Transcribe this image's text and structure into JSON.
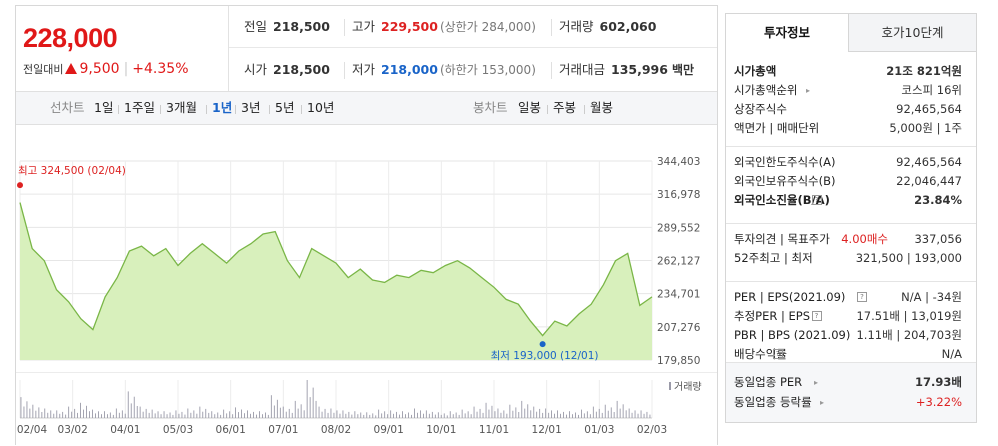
{
  "quote": {
    "price": "228,000",
    "change_label": "전일대비",
    "change_value": "9,500",
    "change_pct": "+4.35%",
    "row1": [
      {
        "key": "전일",
        "value": "218,500",
        "sub": "",
        "color": "normal"
      },
      {
        "key": "고가",
        "value": "229,500",
        "sub": "(상한가 284,000)",
        "color": "up"
      },
      {
        "key": "거래량",
        "value": "602,060",
        "sub": "",
        "color": "normal"
      }
    ],
    "row2": [
      {
        "key": "시가",
        "value": "218,500",
        "sub": "",
        "color": "normal"
      },
      {
        "key": "저가",
        "value": "218,000",
        "sub": "(하한가 153,000)",
        "color": "down"
      },
      {
        "key": "거래대금",
        "value": "135,996",
        "sub": "백만",
        "color": "normal"
      }
    ]
  },
  "periods": {
    "label": "선차트",
    "items": [
      "1일",
      "1주일",
      "3개월",
      "1년",
      "3년",
      "5년",
      "10년"
    ],
    "selected": "1년",
    "candle_label": "봉차트",
    "candle_items": [
      "일봉",
      "주봉",
      "월봉"
    ]
  },
  "chart_data": {
    "type": "area",
    "y_ticks": [
      "344,403",
      "316,978",
      "289,552",
      "262,127",
      "234,701",
      "207,276",
      "179,850"
    ],
    "ylim": [
      179850,
      344403
    ],
    "x_ticks": [
      "02/04",
      "03/02",
      "04/01",
      "05/03",
      "06/01",
      "07/01",
      "08/02",
      "09/01",
      "10/01",
      "11/01",
      "12/01",
      "01/03",
      "02/03"
    ],
    "x": [
      "02/04",
      "02/11",
      "02/18",
      "02/25",
      "03/04",
      "03/11",
      "03/18",
      "03/25",
      "04/01",
      "04/08",
      "04/15",
      "04/22",
      "04/29",
      "05/06",
      "05/13",
      "05/20",
      "05/27",
      "06/03",
      "06/10",
      "06/17",
      "06/24",
      "07/01",
      "07/08",
      "07/15",
      "07/22",
      "07/29",
      "08/05",
      "08/12",
      "08/19",
      "08/26",
      "09/02",
      "09/09",
      "09/16",
      "09/23",
      "09/30",
      "10/07",
      "10/14",
      "10/21",
      "10/28",
      "11/04",
      "11/11",
      "11/18",
      "11/25",
      "12/02",
      "12/09",
      "12/16",
      "12/23",
      "12/30",
      "01/06",
      "01/13",
      "01/20",
      "01/27",
      "02/03"
    ],
    "values": [
      310000,
      272000,
      262000,
      238000,
      228000,
      214000,
      205000,
      232000,
      248000,
      270000,
      274000,
      266000,
      272000,
      258000,
      268000,
      276000,
      268000,
      260000,
      270000,
      276000,
      284000,
      286000,
      262000,
      248000,
      272000,
      266000,
      260000,
      248000,
      255000,
      246000,
      244000,
      250000,
      248000,
      254000,
      252000,
      258000,
      262000,
      256000,
      248000,
      240000,
      230000,
      226000,
      212000,
      200000,
      212000,
      208000,
      218000,
      226000,
      242000,
      262000,
      268000,
      225000,
      232000
    ],
    "high": {
      "label": "최고 324,500 (02/04)",
      "value": 324500,
      "x": "02/04"
    },
    "low": {
      "label": "최저 193,000 (12/01)",
      "value": 193000,
      "x": "12/01"
    },
    "volume_label": "거래량",
    "volume_values": [
      55,
      35,
      25,
      20,
      30,
      40,
      22,
      18,
      25,
      70,
      30,
      22,
      18,
      20,
      25,
      30,
      18,
      22,
      28,
      20,
      18,
      60,
      30,
      45,
      100,
      30,
      25,
      20,
      18,
      15,
      22,
      20,
      18,
      25,
      20,
      15,
      18,
      22,
      30,
      40,
      25,
      35,
      45,
      30,
      25,
      20,
      18,
      22,
      30,
      35,
      45,
      25,
      20
    ],
    "line_color": "#7ab647",
    "fill_color": "#d8f0bc"
  },
  "info": {
    "tabs": [
      "투자정보",
      "호가10단계"
    ],
    "sections": [
      [
        {
          "k": "시가총액",
          "v": "21조 821억원",
          "bold_k": true,
          "bold_v": true
        },
        {
          "k": "시가총액순위",
          "v": "코스피 16위",
          "caret": true
        },
        {
          "k": "상장주식수",
          "v": "92,465,564"
        },
        {
          "k": "액면가 | 매매단위",
          "v": "5,000원 | 1주"
        }
      ],
      [
        {
          "k": "외국인한도주식수(A)",
          "v": "92,465,564"
        },
        {
          "k": "외국인보유주식수(B)",
          "v": "22,046,447"
        },
        {
          "k": "외국인소진율(B/A)",
          "v": "23.84%",
          "bold_k": true,
          "bold_v": true,
          "qi": true
        }
      ],
      [
        {
          "k": "투자의견 | 목표주가",
          "v_red": "4.00매수",
          "v": "337,056"
        },
        {
          "k": "52주최고 | 최저",
          "v": "321,500 | 193,000"
        }
      ],
      [
        {
          "k": "PER | EPS(2021.09)",
          "v": "N/A | -34원",
          "qi": true
        },
        {
          "k": "추정PER | EPS",
          "v": "17.51배 | 13,019원",
          "qi": true
        },
        {
          "k": "PBR | BPS (2021.09)",
          "v": "1.11배 | 204,703원"
        },
        {
          "k": "배당수익률",
          "v": "N/A",
          "qi": true
        }
      ]
    ],
    "peer": [
      {
        "k": "동일업종 PER",
        "v": "17.93배",
        "bold_v": true
      },
      {
        "k": "동일업종 등락률",
        "v": "+3.22%",
        "red": true
      }
    ]
  }
}
